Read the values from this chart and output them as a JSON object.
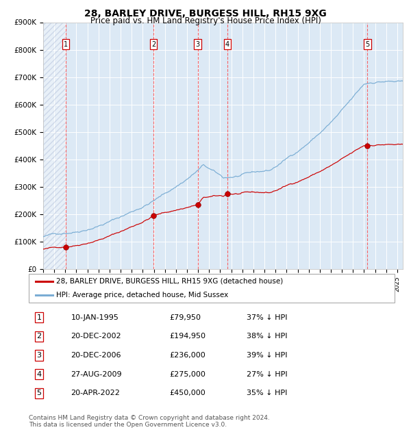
{
  "title": "28, BARLEY DRIVE, BURGESS HILL, RH15 9XG",
  "subtitle": "Price paid vs. HM Land Registry's House Price Index (HPI)",
  "ylim": [
    0,
    900000
  ],
  "yticks": [
    0,
    100000,
    200000,
    300000,
    400000,
    500000,
    600000,
    700000,
    800000,
    900000
  ],
  "ytick_labels": [
    "£0",
    "£100K",
    "£200K",
    "£300K",
    "£400K",
    "£500K",
    "£600K",
    "£700K",
    "£800K",
    "£900K"
  ],
  "sale_dates_num": [
    1995.03,
    2002.97,
    2006.97,
    2009.66,
    2022.31
  ],
  "sale_prices": [
    79950,
    194950,
    236000,
    275000,
    450000
  ],
  "sale_labels": [
    "1",
    "2",
    "3",
    "4",
    "5"
  ],
  "legend_red": "28, BARLEY DRIVE, BURGESS HILL, RH15 9XG (detached house)",
  "legend_blue": "HPI: Average price, detached house, Mid Sussex",
  "table_rows": [
    [
      "1",
      "10-JAN-1995",
      "£79,950",
      "37% ↓ HPI"
    ],
    [
      "2",
      "20-DEC-2002",
      "£194,950",
      "38% ↓ HPI"
    ],
    [
      "3",
      "20-DEC-2006",
      "£236,000",
      "39% ↓ HPI"
    ],
    [
      "4",
      "27-AUG-2009",
      "£275,000",
      "27% ↓ HPI"
    ],
    [
      "5",
      "20-APR-2022",
      "£450,000",
      "35% ↓ HPI"
    ]
  ],
  "footer": "Contains HM Land Registry data © Crown copyright and database right 2024.\nThis data is licensed under the Open Government Licence v3.0.",
  "hatch_region_end": 1995.03,
  "background_color": "#dce9f5",
  "red_line_color": "#cc0000",
  "blue_line_color": "#7aadd4",
  "red_dot_color": "#cc0000",
  "vline_color": "#ff4444",
  "xmin": 1993.0,
  "xmax": 2025.5
}
